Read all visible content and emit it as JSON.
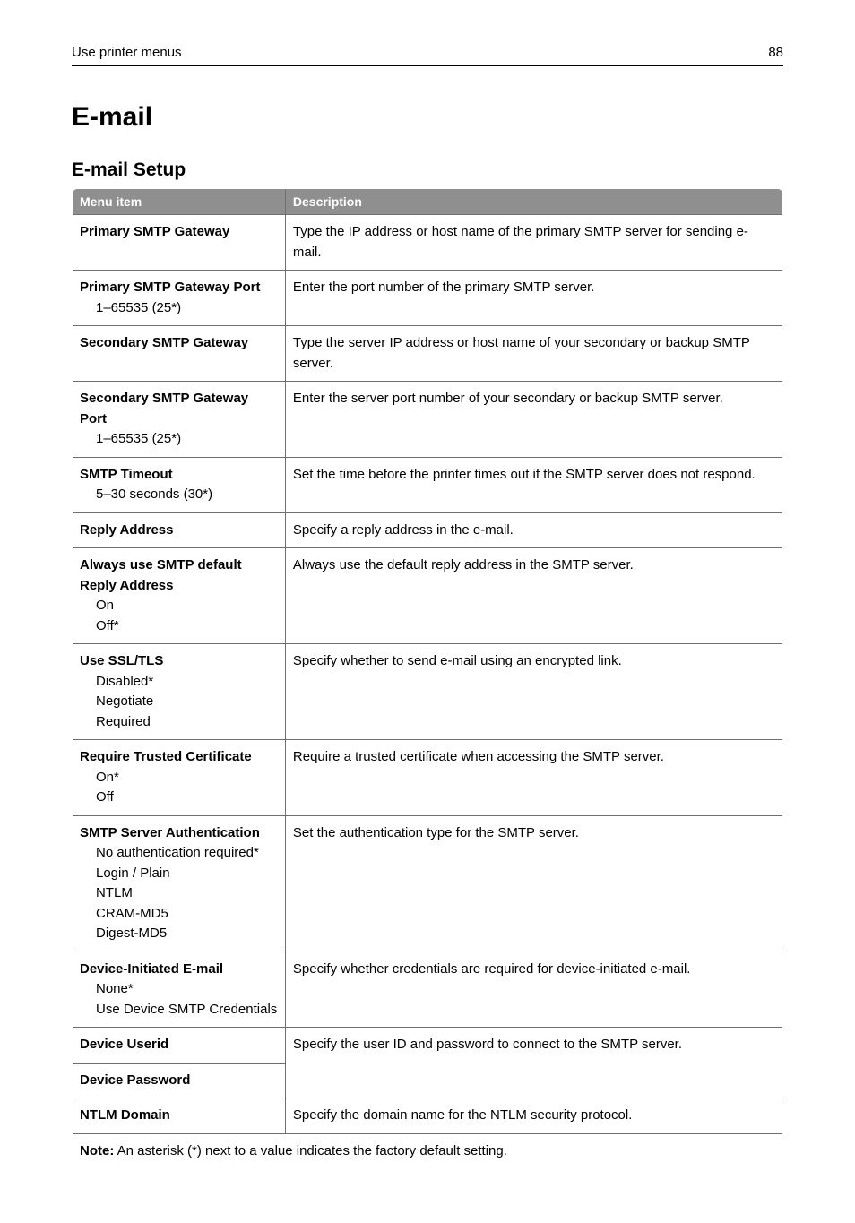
{
  "header": {
    "breadcrumb": "Use printer menus",
    "page_number": "88"
  },
  "page_title": "E-mail",
  "section_title": "E-mail Setup",
  "table": {
    "columns": [
      "Menu item",
      "Description"
    ],
    "rows": [
      {
        "title": "Primary SMTP Gateway",
        "options": [],
        "description": "Type the IP address or host name of the primary SMTP server for sending e-mail."
      },
      {
        "title": "Primary SMTP Gateway Port",
        "options": [
          "1–65535 (25*)"
        ],
        "description": "Enter the port number of the primary SMTP server."
      },
      {
        "title": "Secondary SMTP Gateway",
        "options": [],
        "description": "Type the server IP address or host name of your secondary or backup SMTP server."
      },
      {
        "title": "Secondary SMTP Gateway Port",
        "options": [
          "1–65535 (25*)"
        ],
        "description": "Enter the server port number of your secondary or backup SMTP server."
      },
      {
        "title": "SMTP Timeout",
        "options": [
          "5–30 seconds (30*)"
        ],
        "description": "Set the time before the printer times out if the SMTP server does not respond."
      },
      {
        "title": "Reply Address",
        "options": [],
        "description": "Specify a reply address in the e-mail."
      },
      {
        "title": "Always use SMTP default Reply Address",
        "options": [
          "On",
          "Off*"
        ],
        "description": "Always use the default reply address in the SMTP server."
      },
      {
        "title": "Use SSL/TLS",
        "options": [
          "Disabled*",
          "Negotiate",
          "Required"
        ],
        "description": "Specify whether to send e-mail using an encrypted link."
      },
      {
        "title": "Require Trusted Certificate",
        "options": [
          "On*",
          "Off"
        ],
        "description": "Require a trusted certificate when accessing the SMTP server."
      },
      {
        "title": "SMTP Server Authentication",
        "options": [
          "No authentication required*",
          "Login / Plain",
          "NTLM",
          "CRAM-MD5",
          "Digest-MD5"
        ],
        "description": "Set the authentication type for the SMTP server."
      },
      {
        "title": "Device-Initiated E-mail",
        "options": [
          "None*",
          "Use Device SMTP Credentials"
        ],
        "description": "Specify whether credentials are required for device-initiated e-mail."
      },
      {
        "title": "Device Userid",
        "options": [],
        "description": "Specify the user ID and password to connect to the SMTP server.",
        "merge_with_next": true
      },
      {
        "title": "Device Password",
        "options": [],
        "description": ""
      },
      {
        "title": "NTLM Domain",
        "options": [],
        "description": "Specify the domain name for the NTLM security protocol."
      }
    ],
    "note_label": "Note:",
    "note_text": " An asterisk (*) next to a value indicates the factory default setting."
  }
}
